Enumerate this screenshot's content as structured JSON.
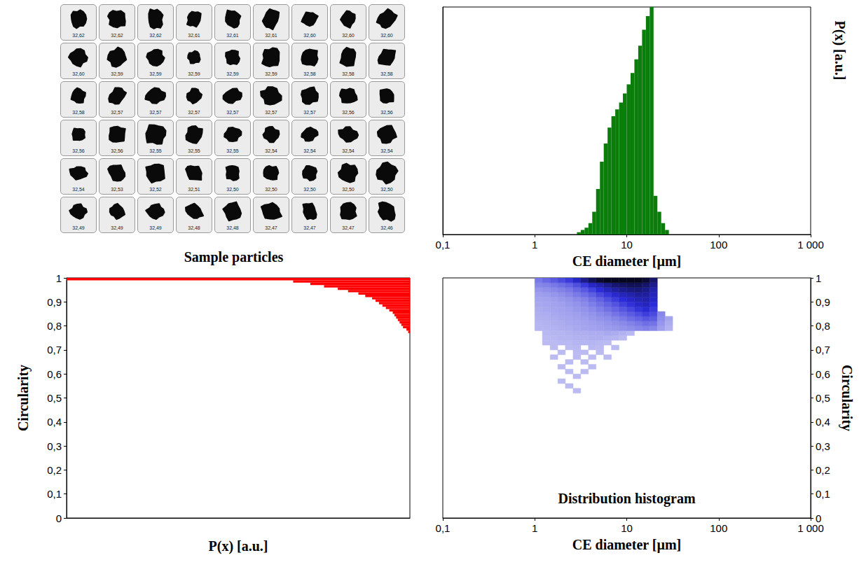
{
  "sample_particles": {
    "title": "Sample particles",
    "labels": [
      "32,62",
      "32,62",
      "32,62",
      "32,61",
      "32,61",
      "32,61",
      "32,60",
      "32,60",
      "32,60",
      "32,60",
      "32,59",
      "32,59",
      "32,59",
      "32,59",
      "32,59",
      "32,58",
      "32,58",
      "32,58",
      "32,58",
      "32,57",
      "32,57",
      "32,57",
      "32,57",
      "32,57",
      "32,57",
      "32,56",
      "32,56",
      "32,56",
      "32,56",
      "32,55",
      "32,55",
      "32,55",
      "32,54",
      "32,54",
      "32,54",
      "32,54",
      "32,54",
      "32,53",
      "32,52",
      "32,51",
      "32,50",
      "32,50",
      "32,50",
      "32,50",
      "32,50",
      "32,49",
      "32,49",
      "32,49",
      "32,48",
      "32,48",
      "32,47",
      "32,47",
      "32,47",
      "32,46"
    ]
  },
  "chart_data": [
    {
      "type": "histogram",
      "x_label": "CE diameter [µm]",
      "y_label": "P(x) [a.u.]",
      "bins": [
        2.873,
        3.162,
        3.481,
        3.831,
        4.217,
        4.642,
        5.109,
        5.623,
        6.19,
        6.813,
        7.499,
        8.254,
        9.085,
        10,
        11.007,
        12.115,
        13.335,
        14.678,
        16.156,
        17.783,
        19.573,
        21.544,
        23.714,
        26.102,
        28.73
      ],
      "values": [
        1,
        2,
        3,
        5,
        10,
        20,
        32,
        40,
        47,
        52,
        55,
        58,
        62,
        66,
        71,
        77,
        83,
        90,
        96,
        100,
        17,
        10,
        5,
        2
      ],
      "color": "#0b7d0b",
      "log": "x",
      "xlim": [
        0.1,
        1000
      ],
      "xticks": [
        {
          "value": 0.1,
          "label": "0,1"
        },
        1,
        10,
        100,
        {
          "value": 1000,
          "label": "1 000"
        }
      ],
      "ylim": [
        0,
        100
      ],
      "tick_labels": "x",
      "grid": false
    },
    {
      "type": "histogram",
      "orientation": "horizontal",
      "x_label": "P(x) [a.u.]",
      "y_label": "Circularity",
      "bins": [
        0.77,
        0.78,
        0.79,
        0.8,
        0.81,
        0.82,
        0.83,
        0.84,
        0.85,
        0.86,
        0.87,
        0.88,
        0.89,
        0.9,
        0.91,
        0.92,
        0.93,
        0.94,
        0.95,
        0.96,
        0.97,
        0.98,
        0.99,
        1
      ],
      "values": [
        0.5,
        1,
        2,
        2.5,
        3,
        3.5,
        4,
        4.5,
        5,
        6,
        7,
        8,
        9,
        10,
        11,
        13,
        15,
        18,
        21,
        25,
        29,
        34,
        100
      ],
      "color": "#ff0000",
      "xlim": [
        100,
        0
      ],
      "ylim": [
        0,
        1
      ],
      "yticks": [
        0,
        {
          "value": 0.1,
          "label": "0,1"
        },
        {
          "value": 0.2,
          "label": "0,2"
        },
        {
          "value": 0.3,
          "label": "0,3"
        },
        {
          "value": 0.4,
          "label": "0,4"
        },
        {
          "value": 0.5,
          "label": "0,5"
        },
        {
          "value": 0.6,
          "label": "0,6"
        },
        {
          "value": 0.7,
          "label": "0,7"
        },
        {
          "value": 0.8,
          "label": "0,8"
        },
        {
          "value": 0.9,
          "label": "0,9"
        },
        1
      ],
      "tick_labels": "y",
      "grid": false
    },
    {
      "type": "heatmap",
      "title": "Distribution histogram",
      "x_label": "CE diameter [µm]",
      "y_label": "Circularity",
      "log": "x",
      "xlim": [
        0.1,
        1000
      ],
      "xticks": [
        {
          "value": 0.1,
          "label": "0,1"
        },
        1,
        10,
        100,
        {
          "value": 1000,
          "label": "1 000"
        }
      ],
      "ylim": [
        0,
        1
      ],
      "yticks": [
        0,
        {
          "value": 0.1,
          "label": "0,1"
        },
        {
          "value": 0.2,
          "label": "0,2"
        },
        {
          "value": 0.3,
          "label": "0,3"
        },
        {
          "value": 0.4,
          "label": "0,4"
        },
        {
          "value": 0.5,
          "label": "0,5"
        },
        {
          "value": 0.6,
          "label": "0,6"
        },
        {
          "value": 0.7,
          "label": "0,7"
        },
        {
          "value": 0.8,
          "label": "0,8"
        },
        {
          "value": 0.9,
          "label": "0,9"
        },
        1
      ],
      "x_bins": [
        1,
        1.21,
        1.47,
        1.78,
        2.15,
        2.61,
        3.16,
        3.83,
        4.64,
        5.62,
        6.81,
        8.25,
        10,
        12.12,
        14.68,
        17.78,
        21.54,
        26.1,
        31.62
      ],
      "y_bins": [
        0.52,
        0.54,
        0.56,
        0.58,
        0.6,
        0.62,
        0.64,
        0.66,
        0.68,
        0.7,
        0.72,
        0.74,
        0.76,
        0.78,
        0.8,
        0.82,
        0.84,
        0.86,
        0.88,
        0.9,
        0.92,
        0.94,
        0.96,
        0.98,
        1
      ],
      "cells": [
        [
          null,
          null,
          null,
          null,
          null,
          3,
          null,
          null,
          null,
          null,
          null,
          null,
          null,
          null,
          null,
          null,
          null,
          null
        ],
        [
          null,
          null,
          null,
          null,
          3,
          null,
          null,
          null,
          null,
          null,
          null,
          null,
          null,
          null,
          null,
          null,
          null,
          null
        ],
        [
          null,
          null,
          null,
          3,
          null,
          null,
          null,
          null,
          null,
          null,
          null,
          null,
          null,
          null,
          null,
          null,
          null,
          null
        ],
        [
          null,
          null,
          null,
          null,
          null,
          3,
          null,
          null,
          null,
          null,
          null,
          null,
          null,
          null,
          null,
          null,
          null,
          null
        ],
        [
          null,
          null,
          null,
          null,
          3,
          null,
          3,
          null,
          null,
          null,
          null,
          null,
          null,
          null,
          null,
          null,
          null,
          null
        ],
        [
          null,
          null,
          null,
          3,
          null,
          null,
          null,
          3,
          null,
          null,
          null,
          null,
          null,
          null,
          null,
          null,
          null,
          null
        ],
        [
          null,
          null,
          null,
          null,
          3,
          null,
          3,
          null,
          null,
          null,
          null,
          null,
          null,
          null,
          null,
          null,
          null,
          null
        ],
        [
          null,
          null,
          3,
          null,
          null,
          3,
          null,
          3,
          null,
          3,
          null,
          null,
          null,
          null,
          null,
          null,
          null,
          null
        ],
        [
          null,
          null,
          null,
          3,
          null,
          3,
          3,
          null,
          3,
          null,
          null,
          null,
          null,
          null,
          null,
          null,
          null,
          null
        ],
        [
          null,
          null,
          3,
          null,
          3,
          4,
          null,
          4,
          3,
          null,
          3,
          null,
          null,
          null,
          null,
          null,
          null,
          null
        ],
        [
          null,
          3,
          3,
          4,
          4,
          5,
          5,
          5,
          4,
          3,
          null,
          null,
          null,
          null,
          null,
          null,
          null,
          null
        ],
        [
          null,
          3,
          4,
          5,
          5,
          6,
          6,
          7,
          7,
          6,
          5,
          3,
          null,
          null,
          null,
          null,
          null,
          null
        ],
        [
          null,
          4,
          5,
          5,
          6,
          7,
          7,
          8,
          8,
          9,
          8,
          6,
          4,
          null,
          null,
          null,
          null,
          null
        ],
        [
          5,
          5,
          6,
          7,
          8,
          9,
          10,
          11,
          12,
          13,
          14,
          16,
          18,
          20,
          22,
          20,
          12,
          6
        ],
        [
          5,
          6,
          7,
          8,
          9,
          10,
          11,
          12,
          13,
          15,
          17,
          19,
          22,
          25,
          28,
          26,
          15,
          8
        ],
        [
          6,
          7,
          8,
          9,
          10,
          11,
          12,
          14,
          16,
          18,
          21,
          24,
          28,
          32,
          36,
          34,
          18,
          10
        ],
        [
          7,
          8,
          9,
          10,
          11,
          12,
          14,
          16,
          19,
          22,
          26,
          30,
          34,
          39,
          44,
          40,
          20,
          null
        ],
        [
          8,
          9,
          10,
          11,
          12,
          14,
          16,
          19,
          23,
          27,
          31,
          36,
          41,
          47,
          52,
          45,
          null,
          null
        ],
        [
          9,
          10,
          11,
          12,
          14,
          16,
          19,
          23,
          27,
          32,
          37,
          43,
          48,
          54,
          58,
          50,
          null,
          null
        ],
        [
          10,
          11,
          12,
          14,
          16,
          19,
          22,
          27,
          32,
          38,
          44,
          50,
          55,
          60,
          62,
          55,
          null,
          null
        ],
        [
          12,
          13,
          15,
          17,
          20,
          24,
          28,
          33,
          40,
          46,
          53,
          58,
          62,
          66,
          66,
          58,
          null,
          null
        ],
        [
          15,
          17,
          19,
          22,
          25,
          30,
          35,
          42,
          50,
          58,
          64,
          70,
          74,
          76,
          72,
          62,
          null,
          null
        ],
        [
          20,
          22,
          25,
          28,
          32,
          38,
          45,
          55,
          62,
          70,
          78,
          82,
          85,
          85,
          80,
          70,
          null,
          null
        ],
        [
          25,
          30,
          35,
          40,
          45,
          55,
          70,
          85,
          95,
          100,
          100,
          100,
          100,
          100,
          95,
          80,
          null,
          null
        ]
      ],
      "color_range": [
        0,
        100
      ],
      "color": "#2b2bd9",
      "grid": false
    }
  ]
}
